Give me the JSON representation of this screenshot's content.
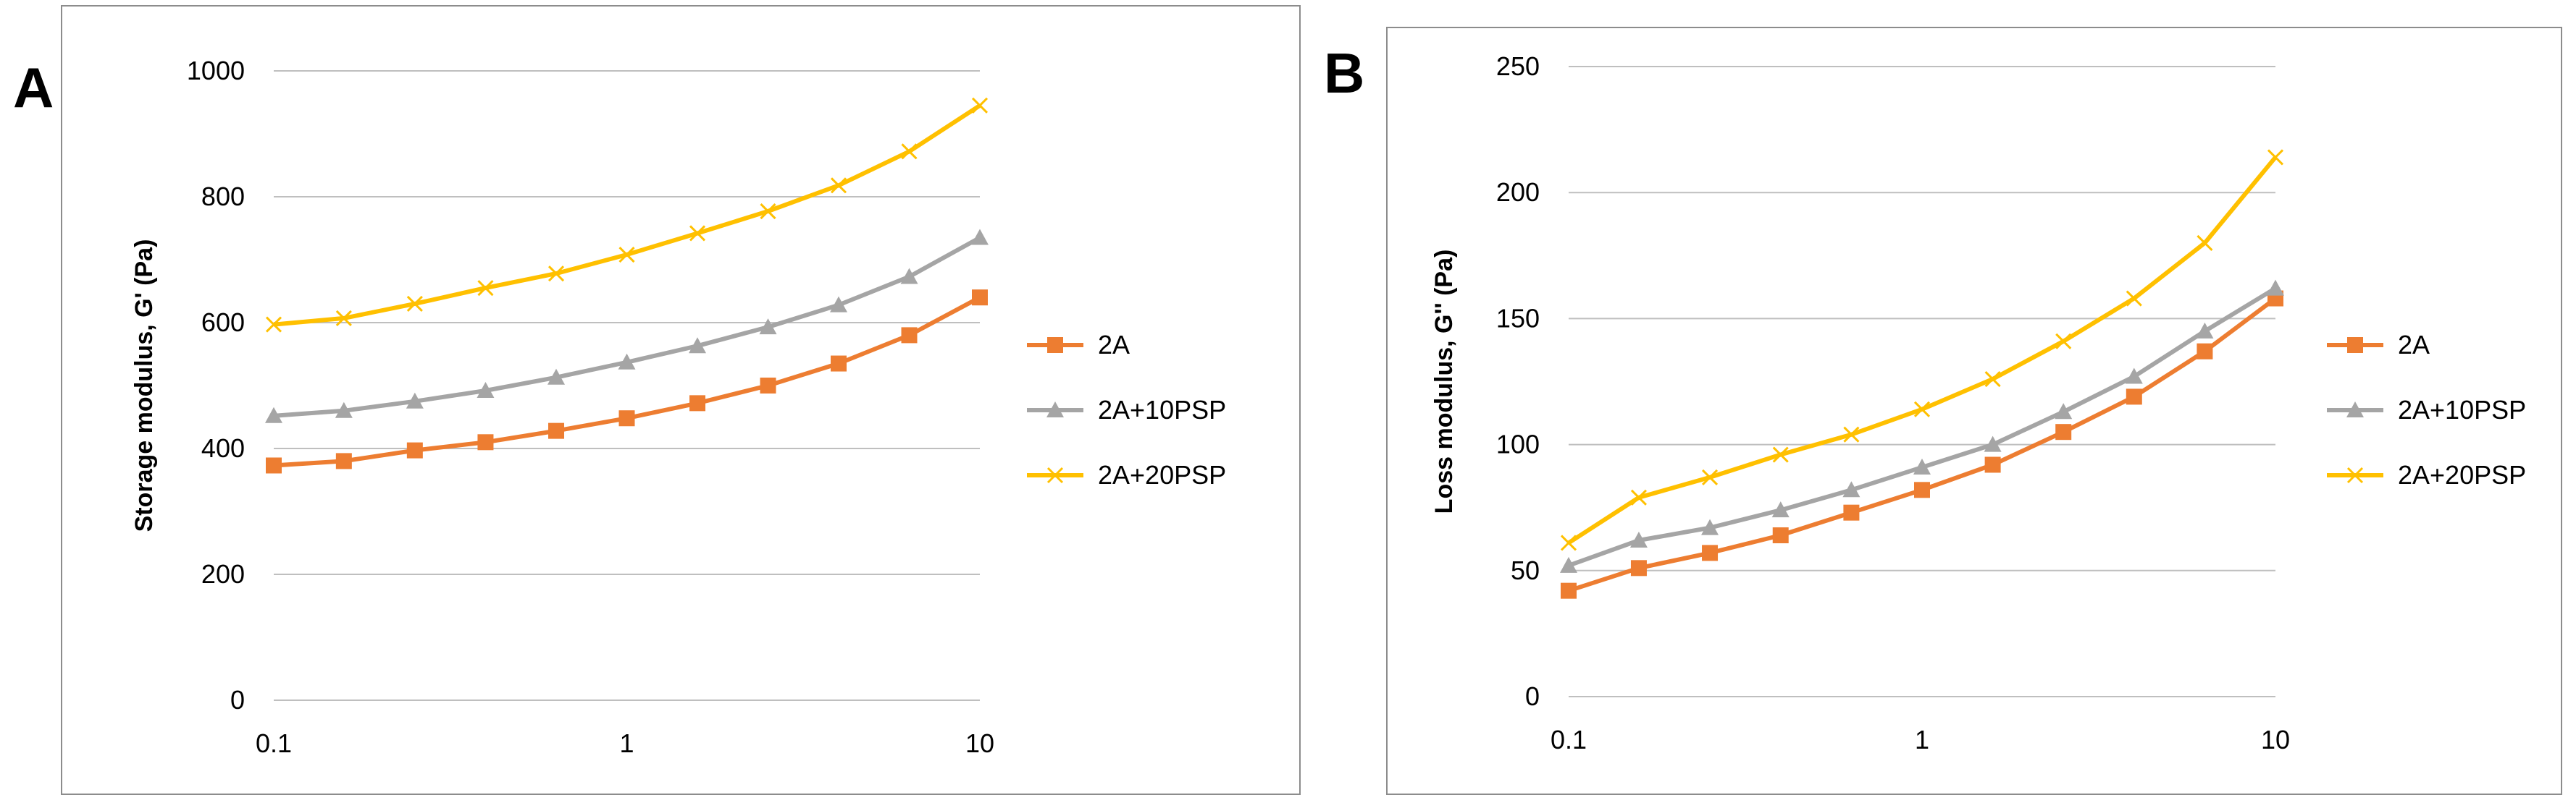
{
  "figure": {
    "panel_letters": [
      "A",
      "B"
    ]
  },
  "colors": {
    "series_2A": "#ED7D31",
    "series_10PSP": "#A5A5A5",
    "series_20PSP": "#FFC000",
    "gridline": "#BFBFBF",
    "frame": "#8C8C8C",
    "text": "#000000"
  },
  "chart_data": [
    {
      "type": "line",
      "panel": "A",
      "title": "",
      "xlabel": "",
      "ylabel": "Storage modulus, G' (Pa)",
      "x_scale": "log",
      "xlim": [
        0.1,
        10
      ],
      "ylim": [
        0,
        1000
      ],
      "x_ticks": [
        0.1,
        1,
        10
      ],
      "x_tick_labels": [
        "0.1",
        "1",
        "10"
      ],
      "y_ticks": [
        0,
        200,
        400,
        600,
        800,
        1000
      ],
      "y_tick_labels": [
        "0",
        "200",
        "400",
        "600",
        "800",
        "1000"
      ],
      "grid": true,
      "legend_position": "right",
      "x": [
        0.1,
        0.158,
        0.251,
        0.398,
        0.631,
        1.0,
        1.585,
        2.512,
        3.981,
        6.31,
        10.0
      ],
      "series": [
        {
          "name": "2A",
          "marker": "square",
          "values": [
            373,
            380,
            397,
            410,
            428,
            448,
            472,
            500,
            535,
            580,
            640
          ]
        },
        {
          "name": "2A+10PSP",
          "marker": "triangle",
          "values": [
            452,
            460,
            475,
            492,
            513,
            537,
            563,
            593,
            628,
            673,
            735
          ]
        },
        {
          "name": "2A+20PSP",
          "marker": "x",
          "values": [
            597,
            607,
            630,
            655,
            678,
            708,
            742,
            777,
            818,
            872,
            945
          ]
        }
      ]
    },
    {
      "type": "line",
      "panel": "B",
      "title": "",
      "xlabel": "",
      "ylabel": "Loss modulus, G'' (Pa)",
      "x_scale": "log",
      "xlim": [
        0.1,
        10
      ],
      "ylim": [
        0,
        250
      ],
      "x_ticks": [
        0.1,
        1,
        10
      ],
      "x_tick_labels": [
        "0.1",
        "1",
        "10"
      ],
      "y_ticks": [
        0,
        50,
        100,
        150,
        200,
        250
      ],
      "y_tick_labels": [
        "0",
        "50",
        "100",
        "150",
        "200",
        "250"
      ],
      "grid": true,
      "legend_position": "right",
      "x": [
        0.1,
        0.158,
        0.251,
        0.398,
        0.631,
        1.0,
        1.585,
        2.512,
        3.981,
        6.31,
        10.0
      ],
      "series": [
        {
          "name": "2A",
          "marker": "square",
          "values": [
            42,
            51,
            57,
            64,
            73,
            82,
            92,
            105,
            119,
            137,
            158
          ]
        },
        {
          "name": "2A+10PSP",
          "marker": "triangle",
          "values": [
            52,
            62,
            67,
            74,
            82,
            91,
            100,
            113,
            127,
            145,
            162
          ]
        },
        {
          "name": "2A+20PSP",
          "marker": "x",
          "values": [
            61,
            79,
            87,
            96,
            104,
            114,
            126,
            141,
            158,
            180,
            214
          ]
        }
      ]
    }
  ]
}
